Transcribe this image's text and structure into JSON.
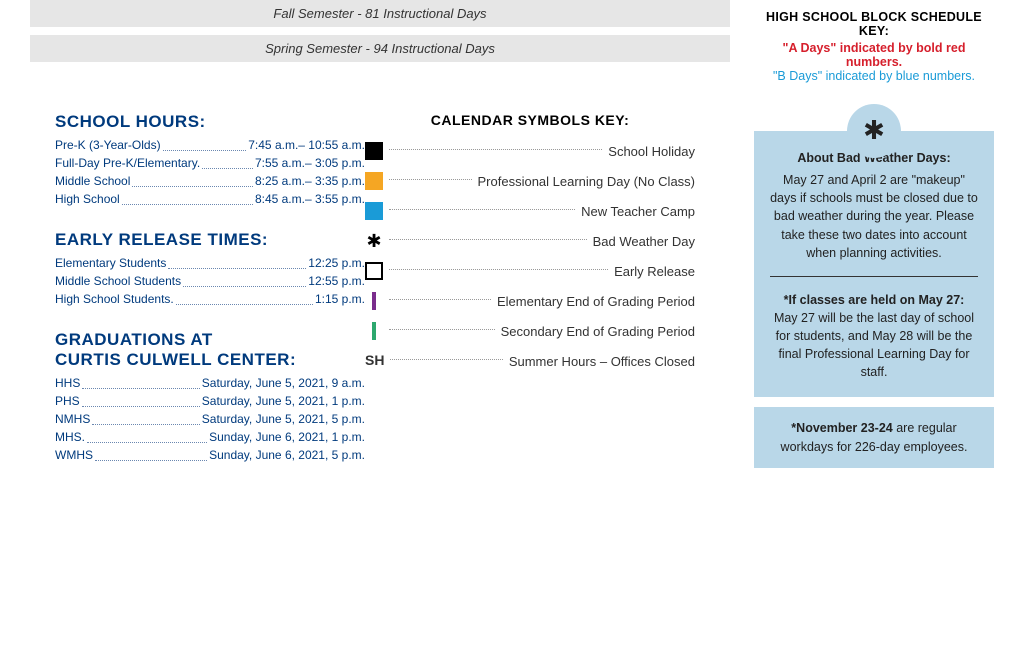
{
  "semesters": {
    "fall": "Fall Semester - 81 Instructional Days",
    "spring": "Spring Semester - 94 Instructional Days"
  },
  "school_hours": {
    "title": "SCHOOL HOURS:",
    "rows": [
      {
        "label": "Pre-K (3-Year-Olds)",
        "value": "7:45 a.m.– 10:55 a.m."
      },
      {
        "label": "Full-Day Pre-K/Elementary.",
        "value": "7:55 a.m.– 3:05 p.m."
      },
      {
        "label": "Middle School",
        "value": "8:25 a.m.– 3:35 p.m."
      },
      {
        "label": "High School",
        "value": "8:45 a.m.– 3:55 p.m."
      }
    ]
  },
  "early_release": {
    "title": "EARLY RELEASE TIMES:",
    "rows": [
      {
        "label": "Elementary Students",
        "value": "12:25 p.m."
      },
      {
        "label": "Middle School Students",
        "value": "12:55 p.m."
      },
      {
        "label": "High School Students.",
        "value": "1:15 p.m."
      }
    ]
  },
  "graduations": {
    "title1": "GRADUATIONS AT",
    "title2": "CURTIS CULWELL CENTER:",
    "rows": [
      {
        "label": "HHS",
        "value": "Saturday, June 5, 2021, 9 a.m."
      },
      {
        "label": "PHS",
        "value": "Saturday, June 5, 2021, 1 p.m."
      },
      {
        "label": "NMHS",
        "value": "Saturday, June 5, 2021, 5 p.m."
      },
      {
        "label": "MHS.",
        "value": "Sunday, June 6, 2021, 1 p.m."
      },
      {
        "label": "WMHS",
        "value": "Sunday, June 6, 2021, 5 p.m."
      }
    ]
  },
  "symbols_key": {
    "title": "CALENDAR SYMBOLS KEY:",
    "items": [
      {
        "type": "swatch",
        "color": "#000000",
        "label": "School Holiday"
      },
      {
        "type": "swatch",
        "color": "#f5a623",
        "label": "Professional Learning Day (No Class)"
      },
      {
        "type": "swatch",
        "color": "#1a9bd7",
        "label": "New Teacher Camp"
      },
      {
        "type": "snow",
        "label": "Bad Weather Day"
      },
      {
        "type": "outline",
        "label": "Early Release"
      },
      {
        "type": "tick-purple",
        "label": "Elementary End of Grading Period"
      },
      {
        "type": "tick-green",
        "label": "Secondary End of Grading Period"
      },
      {
        "type": "text",
        "text": "SH",
        "label": "Summer Hours – Offices Closed"
      }
    ]
  },
  "hs_key": {
    "title": "HIGH SCHOOL BLOCK SCHEDULE KEY:",
    "a": "\"A Days\" indicated by bold red numbers.",
    "b": "\"B Days\" indicated by blue numbers."
  },
  "bad_weather": {
    "heading": "About Bad Weather Days:",
    "p1": "May 27 and April 2 are \"makeup\" days if schools must be closed due to bad weather during the year. Please take these two dates into account when planning activities.",
    "heading2": "*If classes are held on May 27:",
    "p2": "May 27 will be the last day of school for students, and May 28 will be the final Professional Learning Day for staff."
  },
  "nov_note": {
    "bold": "*November 23-24",
    "rest": " are regular workdays for 226-day employees."
  },
  "colors": {
    "title_blue": "#003a7d",
    "box_blue": "#b9d7e8",
    "red": "#d61f2c",
    "light_blue": "#1a9bd7"
  }
}
